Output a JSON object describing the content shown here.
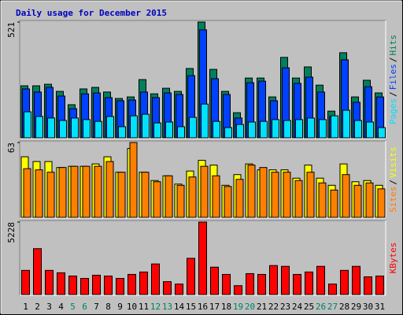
{
  "title": "Daily usage for December 2015",
  "legend_separator": "/",
  "chart_data": [
    {
      "type": "bar",
      "ylim": [
        0,
        521
      ],
      "yticks": [
        521
      ],
      "series": [
        {
          "name": "Hits",
          "color": "#00805c",
          "values": [
            234,
            234,
            241,
            209,
            149,
            220,
            227,
            206,
            177,
            184,
            262,
            198,
            223,
            209,
            312,
            521,
            308,
            209,
            113,
            269,
            269,
            184,
            362,
            269,
            319,
            237,
            120,
            383,
            184,
            259,
            202
          ]
        },
        {
          "name": "Files",
          "color": "#0040ff",
          "values": [
            220,
            206,
            227,
            188,
            131,
            198,
            202,
            181,
            167,
            170,
            206,
            181,
            202,
            195,
            280,
            486,
            266,
            195,
            89,
            248,
            255,
            167,
            315,
            245,
            273,
            206,
            96,
            351,
            160,
            230,
            184
          ]
        },
        {
          "name": "Pages",
          "color": "#00e0ff",
          "values": [
            117,
            96,
            89,
            78,
            89,
            82,
            74,
            96,
            50,
            99,
            106,
            67,
            71,
            50,
            92,
            152,
            74,
            46,
            60,
            71,
            74,
            82,
            78,
            82,
            89,
            82,
            99,
            124,
            78,
            71,
            46
          ]
        }
      ]
    },
    {
      "type": "bar",
      "ylim": [
        0,
        63
      ],
      "yticks": [
        63
      ],
      "series": [
        {
          "name": "Visits",
          "color": "#ffff00",
          "values": [
            51,
            47,
            47,
            42,
            43,
            43,
            45,
            51,
            38,
            58,
            38,
            31,
            35,
            28,
            39,
            48,
            44,
            27,
            36,
            45,
            40,
            40,
            40,
            33,
            44,
            33,
            27,
            45,
            30,
            31,
            27
          ]
        },
        {
          "name": "Sites",
          "color": "#ff8000",
          "values": [
            41,
            40,
            38,
            42,
            43,
            43,
            43,
            47,
            38,
            63,
            38,
            30,
            35,
            27,
            34,
            43,
            35,
            26,
            32,
            44,
            42,
            38,
            38,
            31,
            38,
            29,
            23,
            36,
            27,
            29,
            24
          ]
        }
      ]
    },
    {
      "type": "bar",
      "ylim": [
        0,
        5228
      ],
      "yticks": [
        5228
      ],
      "categories": [
        "1",
        "2",
        "3",
        "4",
        "5",
        "6",
        "7",
        "8",
        "9",
        "10",
        "11",
        "12",
        "13",
        "14",
        "15",
        "16",
        "17",
        "18",
        "19",
        "20",
        "21",
        "22",
        "23",
        "24",
        "25",
        "26",
        "27",
        "28",
        "29",
        "30",
        "31"
      ],
      "category_colors": [
        "#000000",
        "#000000",
        "#000000",
        "#000000",
        "#008060",
        "#008060",
        "#000000",
        "#000000",
        "#000000",
        "#000000",
        "#000000",
        "#008060",
        "#008060",
        "#000000",
        "#000000",
        "#000000",
        "#000000",
        "#000000",
        "#008060",
        "#008060",
        "#000000",
        "#000000",
        "#000000",
        "#000000",
        "#000000",
        "#008060",
        "#008060",
        "#000000",
        "#000000",
        "#000000",
        "#000000"
      ],
      "series": [
        {
          "name": "KBytes",
          "color": "#ff0000",
          "values": [
            1743,
            3311,
            1743,
            1568,
            1336,
            1162,
            1394,
            1336,
            1162,
            1452,
            1626,
            2207,
            929,
            755,
            2614,
            5228,
            1975,
            1452,
            639,
            1510,
            1452,
            2091,
            2033,
            1452,
            1626,
            2033,
            755,
            1743,
            2033,
            1278,
            1336
          ]
        }
      ]
    }
  ]
}
